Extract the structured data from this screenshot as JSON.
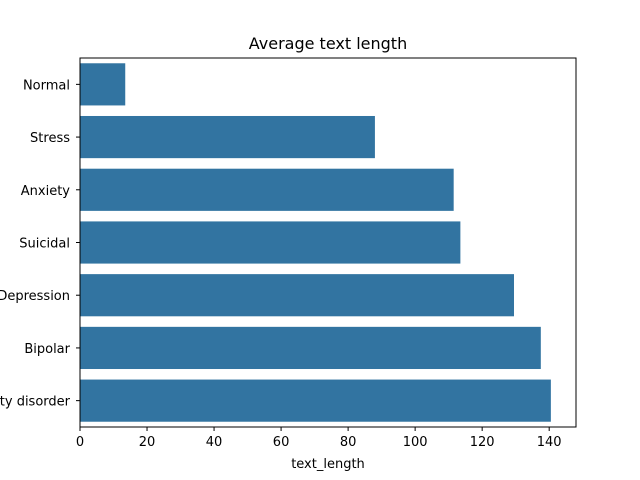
{
  "chart_data": {
    "type": "bar",
    "orientation": "horizontal",
    "title": "Average text length",
    "xlabel": "text_length",
    "ylabel": "",
    "xlim": [
      0,
      148
    ],
    "x_ticks": [
      0,
      20,
      40,
      60,
      80,
      100,
      120,
      140
    ],
    "categories": [
      "Normal",
      "Stress",
      "Anxiety",
      "Suicidal",
      "Depression",
      "Bipolar",
      "Personality disorder"
    ],
    "values": [
      13.5,
      88,
      111.5,
      113.5,
      129.5,
      137.5,
      140.5
    ],
    "bar_color": "#3274a1",
    "grid": false,
    "legend": "none"
  }
}
